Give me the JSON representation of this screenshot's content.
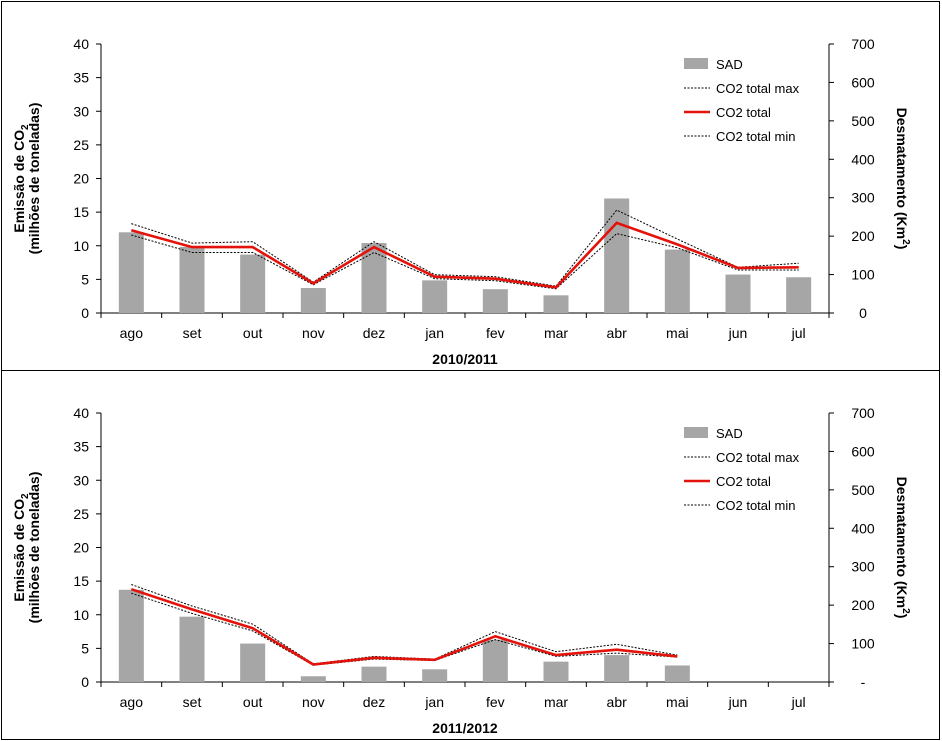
{
  "chart_data": [
    {
      "type": "bar",
      "categories": [
        "ago",
        "set",
        "out",
        "nov",
        "dez",
        "jan",
        "fev",
        "mar",
        "abr",
        "mai",
        "jun",
        "jul"
      ],
      "xlabel": "2010/2011",
      "ylabel_left": [
        "Emissão de CO",
        "2",
        "(milhões de toneladas)"
      ],
      "ylabel_right": [
        "Desmatamento (Km",
        "2",
        ")"
      ],
      "ylim_left": [
        0,
        40
      ],
      "yticks_left": [
        0,
        5,
        10,
        15,
        20,
        25,
        30,
        35,
        40
      ],
      "ylim_right": [
        0,
        700
      ],
      "yticks_right": [
        "0",
        "100",
        "200",
        "300",
        "400",
        "500",
        "600",
        "700"
      ],
      "legend_position": "top-right",
      "series": [
        {
          "name": "SAD",
          "kind": "bar",
          "axis": "right",
          "color": "#a6a6a6",
          "values": [
            210,
            172,
            152,
            65,
            182,
            85,
            62,
            46,
            298,
            165,
            100,
            93
          ]
        },
        {
          "name": "CO2 total max",
          "kind": "line",
          "axis": "left",
          "color": "#000000",
          "style": "dotted",
          "values": [
            13.3,
            10.4,
            10.6,
            4.6,
            10.6,
            5.7,
            5.4,
            4.0,
            15.3,
            11.0,
            6.8,
            7.4
          ]
        },
        {
          "name": "CO2 total",
          "kind": "line",
          "axis": "left",
          "color": "#e3120b",
          "style": "solid",
          "values": [
            12.3,
            9.8,
            9.8,
            4.4,
            9.8,
            5.4,
            5.1,
            3.8,
            13.4,
            10.2,
            6.7,
            6.8
          ]
        },
        {
          "name": "CO2 total min",
          "kind": "line",
          "axis": "left",
          "color": "#000000",
          "style": "dotted",
          "values": [
            11.6,
            9.0,
            9.0,
            4.2,
            9.0,
            5.1,
            4.8,
            3.6,
            11.8,
            9.7,
            6.4,
            6.4
          ]
        }
      ]
    },
    {
      "type": "bar",
      "categories": [
        "ago",
        "set",
        "out",
        "nov",
        "dez",
        "jan",
        "fev",
        "mar",
        "abr",
        "mai",
        "jun",
        "jul"
      ],
      "xlabel": "2011/2012",
      "ylabel_left": [
        "Emissão de CO",
        "2",
        "(milhões de toneladas)"
      ],
      "ylabel_right": [
        "Desmatamento (Km",
        "2",
        ")"
      ],
      "ylim_left": [
        0,
        40
      ],
      "yticks_left": [
        0,
        5,
        10,
        15,
        20,
        25,
        30,
        35,
        40
      ],
      "ylim_right": [
        0,
        700
      ],
      "yticks_right": [
        "-",
        "100",
        "200",
        "300",
        "400",
        "500",
        "600",
        "700"
      ],
      "legend_position": "top-right",
      "series": [
        {
          "name": "SAD",
          "kind": "bar",
          "axis": "right",
          "color": "#a6a6a6",
          "values": [
            240,
            170,
            100,
            15,
            40,
            33,
            110,
            53,
            70,
            43,
            null,
            null
          ]
        },
        {
          "name": "CO2 total max",
          "kind": "line",
          "axis": "left",
          "color": "#000000",
          "style": "dotted",
          "values": [
            14.5,
            11.3,
            8.6,
            2.7,
            3.8,
            3.4,
            7.5,
            4.5,
            5.6,
            4.0,
            null,
            null
          ]
        },
        {
          "name": "CO2 total",
          "kind": "line",
          "axis": "left",
          "color": "#e3120b",
          "style": "solid",
          "values": [
            13.8,
            10.8,
            8.0,
            2.6,
            3.6,
            3.3,
            6.8,
            4.0,
            4.8,
            3.8,
            null,
            null
          ]
        },
        {
          "name": "CO2 total min",
          "kind": "line",
          "axis": "left",
          "color": "#000000",
          "style": "dotted",
          "values": [
            13.2,
            10.2,
            7.6,
            2.5,
            3.4,
            3.2,
            6.3,
            3.8,
            4.3,
            3.7,
            null,
            null
          ]
        }
      ]
    }
  ]
}
